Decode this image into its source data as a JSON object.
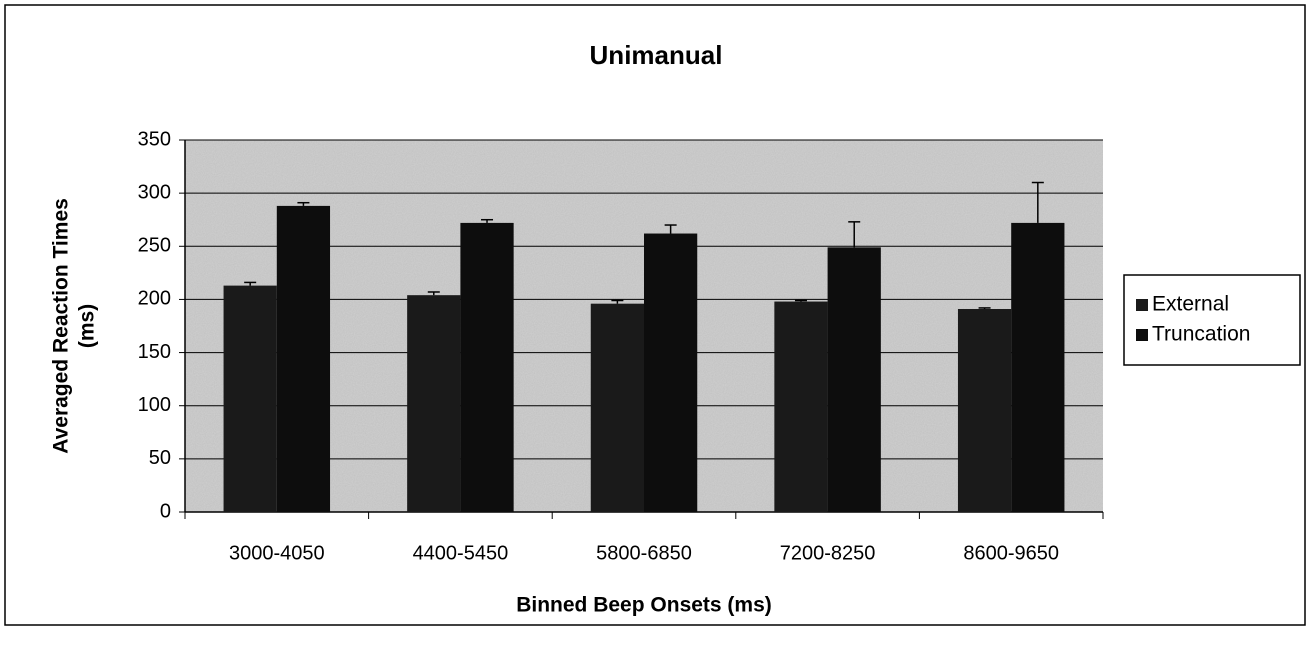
{
  "chart_data": {
    "type": "bar",
    "title": "Unimanual",
    "xlabel": "Binned Beep Onsets (ms)",
    "ylabel": [
      "Averaged Reaction Times",
      "(ms)"
    ],
    "categories": [
      "3000-4050",
      "4400-5450",
      "5800-6850",
      "7200-8250",
      "8600-9650"
    ],
    "series": [
      {
        "name": "External",
        "color": "#1a1a1a",
        "values": [
          213,
          204,
          196,
          198,
          191
        ],
        "errors": [
          3,
          3,
          3,
          1,
          1
        ]
      },
      {
        "name": "Truncation",
        "color": "#0d0d0d",
        "values": [
          288,
          272,
          262,
          249,
          272
        ],
        "errors": [
          3,
          3,
          8,
          24,
          38
        ]
      }
    ],
    "ylim": [
      0,
      350
    ],
    "yticks": [
      0,
      50,
      100,
      150,
      200,
      250,
      300,
      350
    ],
    "grid": true,
    "legend": "right"
  }
}
